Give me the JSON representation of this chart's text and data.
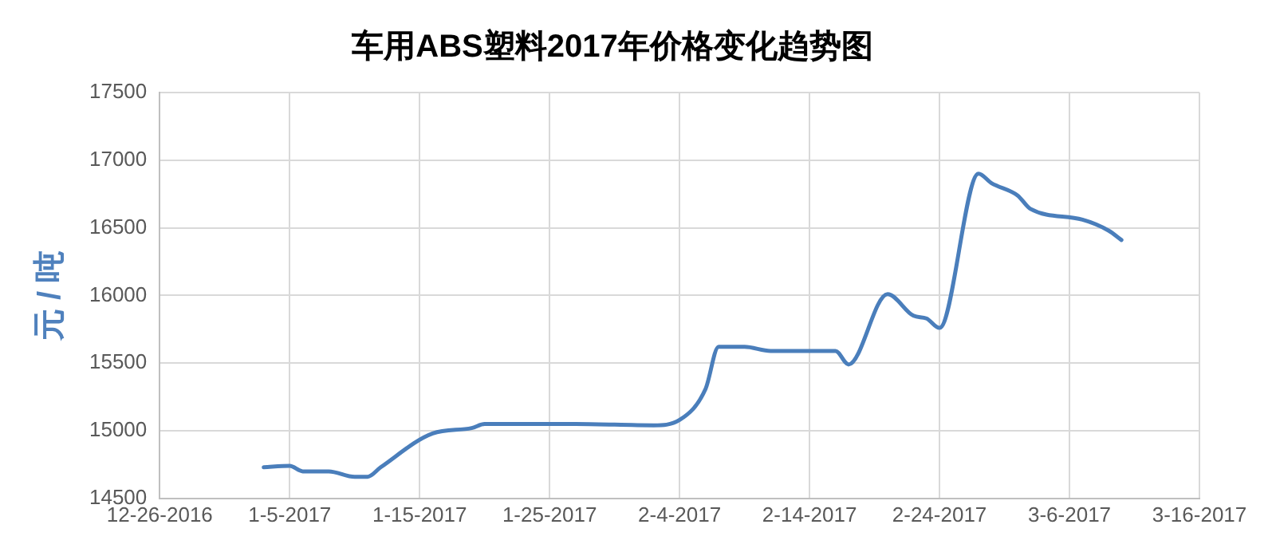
{
  "chart_data": {
    "type": "line",
    "title": "车用ABS塑料2017年价格变化趋势图",
    "ylabel": "元 / 吨",
    "series": [
      {
        "color": "#4a7ebb",
        "x": [
          "2017-01-03",
          "2017-01-05",
          "2017-01-06",
          "2017-01-08",
          "2017-01-10",
          "2017-01-11",
          "2017-01-12",
          "2017-01-16",
          "2017-01-19",
          "2017-01-20",
          "2017-01-27",
          "2017-02-02",
          "2017-02-04",
          "2017-02-06",
          "2017-02-07",
          "2017-02-09",
          "2017-02-11",
          "2017-02-16",
          "2017-02-17",
          "2017-02-20",
          "2017-02-22",
          "2017-02-23",
          "2017-02-24",
          "2017-02-27",
          "2017-02-28",
          "2017-03-02",
          "2017-03-03",
          "2017-03-07",
          "2017-03-09",
          "2017-03-10"
        ],
        "values": [
          14730,
          14740,
          14700,
          14700,
          14660,
          14660,
          14730,
          14980,
          15020,
          15050,
          15050,
          15040,
          15080,
          15310,
          15620,
          15620,
          15590,
          15590,
          15490,
          16010,
          15850,
          15830,
          15760,
          16900,
          16830,
          16740,
          16640,
          16560,
          16480,
          16410
        ]
      }
    ],
    "xlim": [
      "2016-12-26",
      "2017-03-16"
    ],
    "xticks": [
      {
        "value": "2016-12-26",
        "label": "12-26-2016"
      },
      {
        "value": "2017-01-05",
        "label": "1-5-2017"
      },
      {
        "value": "2017-01-15",
        "label": "1-15-2017"
      },
      {
        "value": "2017-01-25",
        "label": "1-25-2017"
      },
      {
        "value": "2017-02-04",
        "label": "2-4-2017"
      },
      {
        "value": "2017-02-14",
        "label": "2-14-2017"
      },
      {
        "value": "2017-02-24",
        "label": "2-24-2017"
      },
      {
        "value": "2017-03-06",
        "label": "3-6-2017"
      },
      {
        "value": "2017-03-16",
        "label": "3-16-2017"
      }
    ],
    "ylim": [
      14500,
      17500
    ],
    "yticks": [
      14500,
      15000,
      15500,
      16000,
      16500,
      17000,
      17500
    ],
    "grid": true,
    "marker": "none",
    "line_style": "solid"
  }
}
